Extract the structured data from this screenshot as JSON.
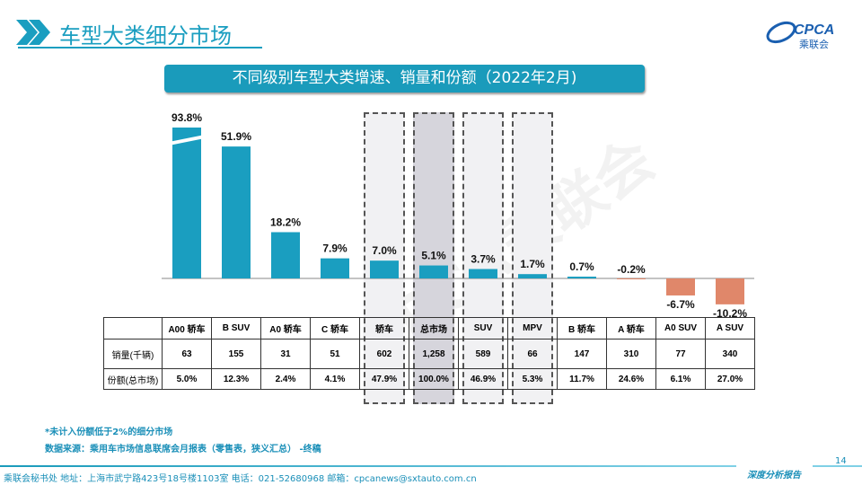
{
  "header": {
    "title": "车型大类细分市场",
    "logo_text": "CPCA",
    "logo_sub": "乘联会"
  },
  "chart_data": {
    "type": "bar",
    "title": "不同级别车型大类增速、销量和份额（2022年2月)",
    "categories": [
      "A00 轿车",
      "B SUV",
      "A0 轿车",
      "C 轿车",
      "轿车",
      "总市场",
      "SUV",
      "MPV",
      "B 轿车",
      "A 轿车",
      "A0 SUV",
      "A SUV"
    ],
    "values": [
      93.8,
      51.9,
      18.2,
      7.9,
      7.0,
      5.1,
      3.7,
      1.7,
      0.7,
      -0.2,
      -6.7,
      -10.2
    ],
    "labels": [
      "93.8%",
      "51.9%",
      "18.2%",
      "7.9%",
      "7.0%",
      "5.1%",
      "3.7%",
      "1.7%",
      "0.7%",
      "-0.2%",
      "-6.7%",
      "-10.2%"
    ],
    "truncated": [
      "A00 轿车"
    ],
    "highlighted": [
      "轿车",
      "总市场",
      "SUV",
      "MPV"
    ],
    "colors": {
      "positive": "#1a9ec0",
      "negative": "#e0876a"
    }
  },
  "table": {
    "row_headers": [
      "销量(千辆)",
      "份额(总市场)"
    ],
    "sales": [
      "63",
      "155",
      "31",
      "51",
      "602",
      "1,258",
      "589",
      "66",
      "147",
      "310",
      "77",
      "340"
    ],
    "share": [
      "5.0%",
      "12.3%",
      "2.4%",
      "4.1%",
      "47.9%",
      "100.0%",
      "46.9%",
      "5.3%",
      "11.7%",
      "24.6%",
      "6.1%",
      "27.0%"
    ]
  },
  "notes": {
    "note1": "*未计入份额低于2%的细分市场",
    "source": "数据来源：乘用车市场信息联席会月报表（零售表，狭义汇总） -终稿"
  },
  "footer": {
    "text": "乘联会秘书处   地址：上海市武宁路423号18号楼1103室  电话：021-52680968   邮箱：cpcanews@sxtauto.com.cn",
    "tag": "深度分析报告",
    "page": "14"
  },
  "watermark": "CPCA乘联会"
}
